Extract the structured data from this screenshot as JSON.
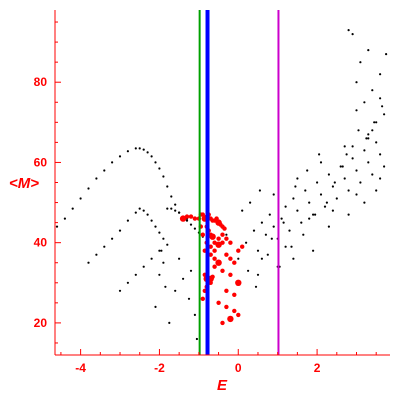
{
  "chart_data": {
    "type": "scatter",
    "title": "",
    "xlabel": "E",
    "ylabel": "<M>",
    "xlim": [
      -4.65,
      3.85
    ],
    "ylim": [
      12,
      98
    ],
    "xticks": [
      -4,
      -2,
      0,
      2
    ],
    "xtick_labels": [
      "-4",
      "-2",
      "0",
      "2"
    ],
    "yticks": [
      20,
      40,
      60,
      80
    ],
    "ytick_labels": [
      "20",
      "40",
      "60",
      "80"
    ],
    "grid": false,
    "legend": "none",
    "colors": {
      "axis": "#ff0000",
      "points_black": "#000000",
      "points_red": "#ff0000",
      "line_green": "#00a000",
      "line_blue": "#0000ff",
      "line_magenta": "#cc00cc"
    },
    "vertical_lines": [
      {
        "x": -0.98,
        "color": "#00a000"
      },
      {
        "x": -0.78,
        "color": "#0000ff"
      },
      {
        "x": 1.02,
        "color": "#cc00cc"
      }
    ],
    "series": [
      {
        "color": "#000000",
        "x": [
          -4.6,
          -4.4,
          -4.2,
          -4.0,
          -3.8,
          -3.6,
          -3.4,
          -3.2,
          -3.0,
          -2.8,
          -2.6,
          -2.5,
          -2.4,
          -2.3,
          -2.2,
          -2.1,
          -2.0,
          -1.9,
          -1.8,
          -1.7,
          -1.6,
          -1.5,
          -1.4,
          -1.3,
          -3.8,
          -3.6,
          -3.4,
          -3.2,
          -3.0,
          -2.8,
          -2.6,
          -2.5,
          -2.4,
          -2.3,
          -2.2,
          -2.1,
          -2.0,
          -1.9,
          -1.8,
          -3.0,
          -2.8,
          -2.6,
          -2.4,
          -2.2,
          -2.0,
          -1.8,
          -1.7,
          -1.6,
          -1.5,
          -1.4,
          -1.3,
          -1.2,
          -1.1,
          -1.0,
          -0.9,
          -1.95,
          -1.9,
          -2.0,
          -1.85,
          -2.1,
          -1.75,
          -1.5,
          -1.2,
          -1.6,
          -1.1,
          -1.4,
          -1.25,
          -1.05
        ],
        "y": [
          44,
          46,
          48.5,
          51,
          53.5,
          56,
          58,
          60,
          61.5,
          62.8,
          63.5,
          63.5,
          63.2,
          62.5,
          61.5,
          60,
          58.5,
          56.5,
          54,
          51.5,
          49.5,
          47.5,
          46.5,
          46,
          35,
          37,
          39,
          41,
          43,
          45.5,
          47.5,
          48.5,
          48,
          47,
          45.5,
          44,
          42.5,
          41,
          39.5,
          28,
          30,
          32,
          34,
          36,
          38,
          48.5,
          48.5,
          48,
          47.5,
          46.5,
          45.5,
          44.5,
          43.5,
          42.5,
          41.5,
          38,
          35,
          32,
          29,
          24,
          20,
          36,
          33,
          28,
          22,
          31,
          26,
          16
        ]
      },
      {
        "color": "#000000",
        "x": [
          0.2,
          0.4,
          0.5,
          0.6,
          0.7,
          0.8,
          0.9,
          1.0,
          1.1,
          1.2,
          1.3,
          1.4,
          1.5,
          1.6,
          1.7,
          1.8,
          1.9,
          2.0,
          2.1,
          2.2,
          2.3,
          2.4,
          2.5,
          2.6,
          2.7,
          2.8,
          2.9,
          3.0,
          3.1,
          3.2,
          3.3,
          3.4,
          3.5,
          3.6,
          3.7,
          0.3,
          0.6,
          0.9,
          1.2,
          1.5,
          1.8,
          2.1,
          2.4,
          2.7,
          3.0,
          3.3,
          3.6,
          0.5,
          1.0,
          1.4,
          1.9,
          2.3,
          2.8,
          3.2,
          3.5,
          2.8,
          2.9,
          3.0,
          3.1,
          3.2,
          3.3,
          3.4,
          3.5,
          3.6,
          3.7,
          3.75,
          3.3,
          3.0,
          3.6,
          3.4,
          2.9,
          -0.3,
          0.0,
          0.1,
          0.25,
          0.45,
          0.55,
          0.75,
          0.85,
          1.05,
          1.15,
          1.35,
          1.45,
          1.65,
          1.75,
          1.95,
          2.05,
          2.25,
          2.45,
          2.65,
          2.75,
          3.05,
          3.25,
          3.45,
          3.65
        ],
        "y": [
          40,
          43,
          38,
          45,
          42,
          47,
          44,
          41,
          46,
          49,
          43,
          51,
          48,
          45,
          53,
          50,
          47,
          55,
          52,
          49,
          57,
          54,
          51,
          59,
          56,
          53,
          61,
          58,
          55,
          63,
          60,
          57,
          65,
          62,
          59,
          50,
          36,
          52,
          39,
          56,
          46,
          60,
          48,
          64,
          52,
          67,
          56,
          32,
          34,
          36,
          38,
          44,
          47,
          50,
          53,
          93,
          92,
          80,
          85,
          75,
          88,
          78,
          70,
          82,
          72,
          87,
          66,
          73,
          76,
          68,
          64,
          42,
          36,
          48,
          33,
          29,
          53,
          37,
          41,
          34,
          45,
          39,
          54,
          42,
          58,
          47,
          62,
          50,
          55,
          59,
          62,
          68,
          66,
          70,
          74
        ]
      },
      {
        "color": "#ff0000",
        "x": [
          -1.4,
          -1.3,
          -1.2,
          -1.1,
          -1.0,
          -0.95,
          -0.9,
          -0.85,
          -0.8,
          -0.75,
          -0.7,
          -0.65,
          -0.6,
          -0.55,
          -0.5,
          -0.45,
          -0.4,
          -0.35,
          -0.8,
          -0.75,
          -0.7,
          -0.65,
          -0.6,
          -0.5,
          -0.4,
          -0.8,
          -0.7,
          -0.6,
          -0.5,
          -0.4,
          -0.3,
          -0.2,
          -0.85,
          -0.7,
          -0.6,
          -0.5,
          -0.3,
          -0.2,
          -0.1,
          0.0,
          0.1,
          -0.85,
          -0.8,
          -0.75,
          -0.7,
          -0.9,
          -0.85,
          -0.8,
          -0.75,
          -0.7,
          -0.65,
          -0.95,
          -0.9,
          -0.6,
          -0.4,
          -0.2,
          0.0,
          -0.3,
          -0.1,
          -0.5,
          -0.3,
          -0.1,
          0.0,
          -0.2,
          -0.4
        ],
        "y": [
          46,
          46.5,
          46.5,
          46,
          46,
          47,
          47,
          46,
          46.5,
          47,
          46,
          45.5,
          45.5,
          46,
          45,
          44.5,
          44,
          43.5,
          44,
          43,
          42,
          41.5,
          40,
          41,
          42,
          40,
          39,
          38,
          39.5,
          40,
          41,
          40,
          38,
          37,
          36,
          35,
          37,
          36,
          35,
          38,
          39,
          32,
          31,
          30.5,
          30,
          26,
          28,
          29,
          30,
          31,
          31.5,
          44,
          42,
          34,
          33,
          32,
          30,
          28,
          27,
          25,
          24,
          23,
          22,
          21,
          20
        ]
      }
    ]
  }
}
